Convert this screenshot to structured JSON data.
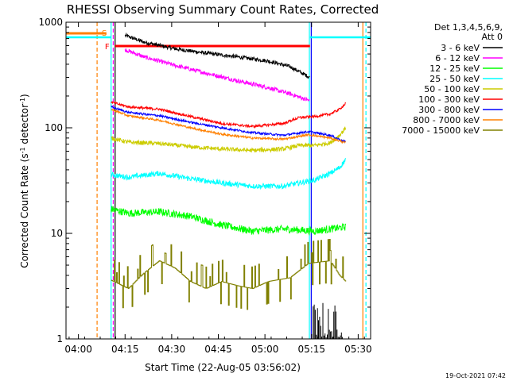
{
  "chart_data": {
    "type": "line",
    "title": "RHESSI Observing Summary Count Rates, Corrected",
    "xlabel": "Start Time (22-Aug-05 03:56:02)",
    "ylabel_main": "Corrected Count Rate (s",
    "ylabel_sup1": "-1",
    "ylabel_mid": " detector",
    "ylabel_sup2": "-1",
    "ylabel_end": ")",
    "y_scale": "log",
    "ylim": [
      1,
      1000
    ],
    "xlim_minutes": [
      0,
      98
    ],
    "x_ticks": [
      {
        "t": 4,
        "label": "04:00"
      },
      {
        "t": 19,
        "label": "04:15"
      },
      {
        "t": 34,
        "label": "04:30"
      },
      {
        "t": 49,
        "label": "04:45"
      },
      {
        "t": 64,
        "label": "05:00"
      },
      {
        "t": 79,
        "label": "05:15"
      },
      {
        "t": 94,
        "label": "05:30"
      }
    ],
    "y_ticks": [
      {
        "v": 1,
        "label": "1"
      },
      {
        "v": 10,
        "label": "10"
      },
      {
        "v": 100,
        "label": "100"
      },
      {
        "v": 1000,
        "label": "1000"
      }
    ],
    "legend_title": "Det 1,3,4,5,6,9,",
    "legend_subtitle": "Att 0",
    "legend_placement": "right",
    "series": [
      {
        "name": "3 - 6 keV",
        "color": "#000000",
        "t0": 19,
        "t1": 78.5,
        "noise": 0.018,
        "pts": [
          [
            19,
            750
          ],
          [
            25,
            650
          ],
          [
            35,
            560
          ],
          [
            45,
            510
          ],
          [
            55,
            470
          ],
          [
            65,
            430
          ],
          [
            72,
            380
          ],
          [
            78.5,
            300
          ]
        ]
      },
      {
        "name": "6 - 12 keV",
        "color": "#ff00ff",
        "t0": 19,
        "t1": 78.5,
        "noise": 0.02,
        "pts": [
          [
            19,
            550
          ],
          [
            25,
            470
          ],
          [
            35,
            390
          ],
          [
            45,
            330
          ],
          [
            55,
            280
          ],
          [
            65,
            240
          ],
          [
            72,
            210
          ],
          [
            78.5,
            180
          ]
        ]
      },
      {
        "name": "12 - 25 keV",
        "color": "#00ff00",
        "t0": 14.5,
        "t1": 90,
        "noise": 0.035,
        "pts": [
          [
            14.5,
            17
          ],
          [
            20,
            15.5
          ],
          [
            30,
            16
          ],
          [
            40,
            14.5
          ],
          [
            50,
            12
          ],
          [
            60,
            10.5
          ],
          [
            70,
            11
          ],
          [
            80,
            10.5
          ],
          [
            90,
            11.5
          ]
        ]
      },
      {
        "name": "25 - 50 keV",
        "color": "#00ffff",
        "t0": 14.5,
        "t1": 90,
        "noise": 0.025,
        "pts": [
          [
            14.5,
            36
          ],
          [
            20,
            34
          ],
          [
            30,
            37
          ],
          [
            40,
            33
          ],
          [
            50,
            30
          ],
          [
            60,
            28
          ],
          [
            70,
            28
          ],
          [
            75,
            30
          ],
          [
            80,
            32
          ],
          [
            85,
            37
          ],
          [
            88,
            42
          ],
          [
            90,
            50
          ]
        ]
      },
      {
        "name": "50 - 100 keV",
        "color": "#cccc00",
        "t0": 14.5,
        "t1": 90,
        "noise": 0.02,
        "pts": [
          [
            14.5,
            80
          ],
          [
            20,
            73
          ],
          [
            30,
            71
          ],
          [
            40,
            66
          ],
          [
            50,
            63
          ],
          [
            60,
            61
          ],
          [
            70,
            63
          ],
          [
            75,
            68
          ],
          [
            80,
            68
          ],
          [
            85,
            72
          ],
          [
            88,
            85
          ],
          [
            90,
            100
          ]
        ]
      },
      {
        "name": "100 - 300 keV",
        "color": "#ff0000",
        "t0": 14.5,
        "t1": 90,
        "noise": 0.012,
        "pts": [
          [
            14.5,
            175
          ],
          [
            20,
            158
          ],
          [
            30,
            150
          ],
          [
            40,
            128
          ],
          [
            50,
            110
          ],
          [
            60,
            103
          ],
          [
            70,
            110
          ],
          [
            75,
            125
          ],
          [
            80,
            128
          ],
          [
            85,
            135
          ],
          [
            88,
            150
          ],
          [
            90,
            170
          ]
        ]
      },
      {
        "name": "300 - 800 keV",
        "color": "#0000ff",
        "t0": 14.5,
        "t1": 90,
        "noise": 0.01,
        "pts": [
          [
            14.5,
            158
          ],
          [
            20,
            140
          ],
          [
            30,
            130
          ],
          [
            40,
            113
          ],
          [
            50,
            100
          ],
          [
            60,
            90
          ],
          [
            70,
            85
          ],
          [
            78,
            92
          ],
          [
            85,
            85
          ],
          [
            90,
            73
          ]
        ]
      },
      {
        "name": "800 - 7000 keV",
        "color": "#ff8000",
        "t0": 14.5,
        "t1": 90,
        "noise": 0.01,
        "pts": [
          [
            14.5,
            150
          ],
          [
            20,
            130
          ],
          [
            30,
            118
          ],
          [
            40,
            100
          ],
          [
            50,
            87
          ],
          [
            60,
            80
          ],
          [
            70,
            78
          ],
          [
            78,
            86
          ],
          [
            85,
            80
          ],
          [
            90,
            72
          ]
        ]
      },
      {
        "name": "7000 - 15000 keV",
        "color": "#808000",
        "t0": 14.5,
        "t1": 90,
        "step": true,
        "pts": [
          [
            14.5,
            3.6
          ],
          [
            20,
            3.0
          ],
          [
            25,
            4.2
          ],
          [
            30,
            5.5
          ],
          [
            35,
            4.7
          ],
          [
            40,
            3.5
          ],
          [
            45,
            3.0
          ],
          [
            50,
            3.5
          ],
          [
            55,
            3.2
          ],
          [
            60,
            3.0
          ],
          [
            65,
            3.5
          ],
          [
            72,
            3.8
          ],
          [
            78,
            5.2
          ],
          [
            85,
            5.5
          ],
          [
            88,
            4.0
          ],
          [
            90,
            3.5
          ]
        ]
      }
    ],
    "flag_labels": {
      "s": "S",
      "f": "F"
    },
    "timestamp": "19-Oct-2021 07:42"
  }
}
